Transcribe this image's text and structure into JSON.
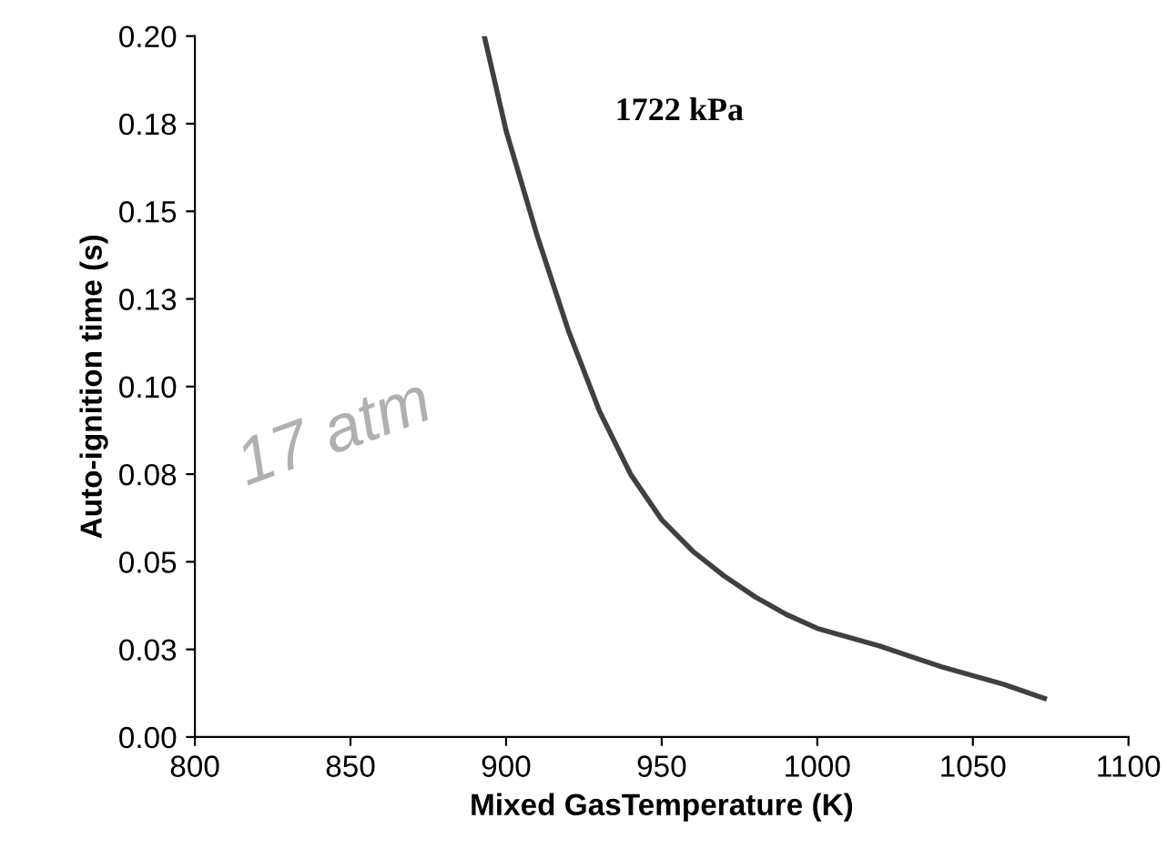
{
  "chart_data": {
    "type": "line",
    "xlabel": "Mixed GasTemperature (K)",
    "ylabel": "Auto-ignition time (s)",
    "annotations": [
      "1722 kPa",
      "17 atm"
    ],
    "x": [
      893,
      900,
      910,
      920,
      930,
      940,
      950,
      960,
      970,
      980,
      990,
      1000,
      1020,
      1040,
      1060,
      1073
    ],
    "series": [
      {
        "color": "#404040",
        "values": [
          0.2,
          0.173,
          0.143,
          0.116,
          0.093,
          0.075,
          0.062,
          0.053,
          0.046,
          0.04,
          0.035,
          0.031,
          0.026,
          0.02,
          0.015,
          0.011
        ]
      }
    ],
    "xlim": [
      800,
      1100
    ],
    "xticks": [
      800,
      850,
      900,
      950,
      1000,
      1050,
      1100
    ],
    "ylim": [
      0,
      0.2
    ],
    "yticks": [
      {
        "value": 0,
        "label": "0.00"
      },
      {
        "value": 0.025,
        "label": "0.03"
      },
      {
        "value": 0.05,
        "label": "0.05"
      },
      {
        "value": 0.075,
        "label": "0.08"
      },
      {
        "value": 0.1,
        "label": "0.10"
      },
      {
        "value": 0.125,
        "label": "0.13"
      },
      {
        "value": 0.15,
        "label": "0.15"
      },
      {
        "value": 0.175,
        "label": "0.18"
      },
      {
        "value": 0.2,
        "label": "0.20"
      }
    ],
    "grid": false,
    "marker": "none",
    "line_style": "solid"
  }
}
